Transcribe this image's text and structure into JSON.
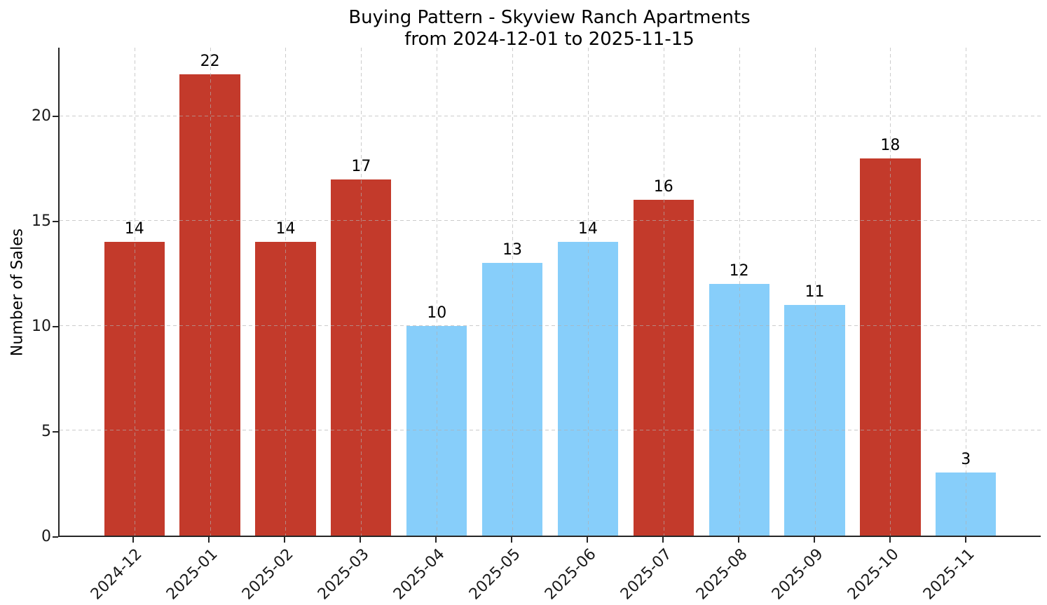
{
  "title": "Buying Pattern - Skyview Ranch Apartments",
  "subtitle": "from 2024-12-01 to 2025-11-15",
  "chart_data": {
    "type": "bar",
    "title": "Buying Pattern - Skyview Ranch Apartments\nfrom 2024-12-01 to 2025-11-15",
    "xlabel": "",
    "ylabel": "Number of Sales",
    "categories": [
      "2024-12",
      "2025-01",
      "2025-02",
      "2025-03",
      "2025-04",
      "2025-05",
      "2025-06",
      "2025-07",
      "2025-08",
      "2025-09",
      "2025-10",
      "2025-11"
    ],
    "values": [
      14,
      22,
      14,
      17,
      10,
      13,
      14,
      16,
      12,
      11,
      18,
      3
    ],
    "bar_colors": [
      "#c33a2b",
      "#c33a2b",
      "#c33a2b",
      "#c33a2b",
      "#87cefa",
      "#87cefa",
      "#87cefa",
      "#c33a2b",
      "#87cefa",
      "#87cefa",
      "#c33a2b",
      "#87cefa"
    ],
    "palette": {
      "high_month_red": "#c33a2b",
      "low_month_blue": "#87cefa"
    },
    "value_labels_shown": true,
    "yticks": [
      0,
      5,
      10,
      15,
      20
    ],
    "ylim": [
      0,
      23.27
    ],
    "xlim": [
      -0.99,
      11.99
    ],
    "bar_width": 0.8,
    "grid": true,
    "grid_style": "dashed",
    "grid_color": "#b0b0b0",
    "grid_over_bars": true,
    "legend": "none",
    "x_tick_rotation_deg": 45
  }
}
